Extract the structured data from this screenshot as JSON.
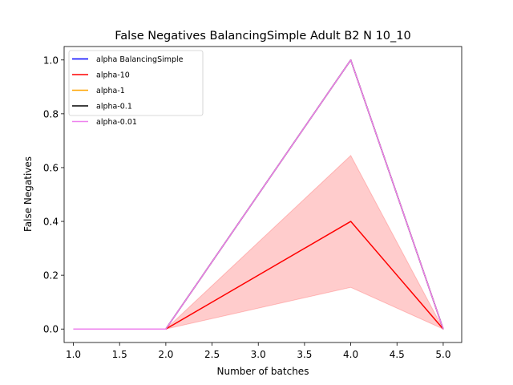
{
  "chart_data": {
    "type": "line",
    "title": "False Negatives BalancingSimple Adult B2 N 10_10",
    "xlabel": "Number of batches",
    "ylabel": "False Negatives",
    "xlim": [
      0.9,
      5.2
    ],
    "ylim": [
      -0.05,
      1.05
    ],
    "x_ticks": [
      1.0,
      1.5,
      2.0,
      2.5,
      3.0,
      3.5,
      4.0,
      4.5,
      5.0
    ],
    "x_tick_labels": [
      "1.0",
      "1.5",
      "2.0",
      "2.5",
      "3.0",
      "3.5",
      "4.0",
      "4.5",
      "5.0"
    ],
    "y_ticks": [
      0.0,
      0.2,
      0.4,
      0.6,
      0.8,
      1.0
    ],
    "y_tick_labels": [
      "0.0",
      "0.2",
      "0.4",
      "0.6",
      "0.8",
      "1.0"
    ],
    "x": [
      1,
      2,
      4,
      5
    ],
    "legend_position": "top-left",
    "series": [
      {
        "name": "alpha BalancingSimple",
        "color": "#0000ff",
        "values": [
          0,
          0,
          1.0,
          0
        ]
      },
      {
        "name": "alpha-10",
        "color": "#ff0000",
        "values": [
          0,
          0,
          0.4,
          0
        ],
        "band_lower": [
          0,
          0,
          0.155,
          0
        ],
        "band_upper": [
          0,
          0,
          0.645,
          0
        ]
      },
      {
        "name": "alpha-1",
        "color": "#ffa500",
        "values": [
          0,
          0,
          1.0,
          0
        ]
      },
      {
        "name": "alpha-0.1",
        "color": "#000000",
        "values": [
          0,
          0,
          1.0,
          0
        ]
      },
      {
        "name": "alpha-0.01",
        "color": "#ee82ee",
        "values": [
          0,
          0,
          1.0,
          0
        ]
      }
    ]
  }
}
